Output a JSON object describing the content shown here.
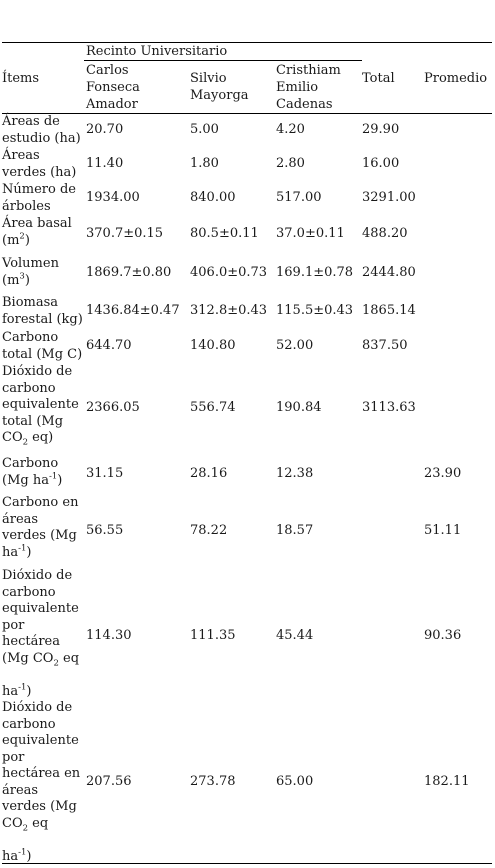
{
  "table": {
    "group_header": "Recinto Universitario",
    "col_items": "Ítems",
    "col_site1": "Carlos\nFonseca\nAmador",
    "col_site2": "Silvio\nMayorga",
    "col_site3": "Cristhiam\nEmilio\nCadenas",
    "col_total": "Total",
    "col_avg": "Promedio",
    "rows": [
      {
        "label": "Áreas de\nestudio (ha)",
        "c1": "20.70",
        "c2": "5.00",
        "c3": "4.20",
        "total": "29.90",
        "avg": ""
      },
      {
        "label": "Áreas\nverdes (ha)",
        "c1": "11.40",
        "c2": "1.80",
        "c3": "2.80",
        "total": "16.00",
        "avg": ""
      },
      {
        "label": "Número de\nárboles",
        "c1": "1934.00",
        "c2": "840.00",
        "c3": "517.00",
        "total": "3291.00",
        "avg": ""
      },
      {
        "label_a": "Área basal\n(m",
        "sup": "2",
        "label_b": ")",
        "c1": "370.7±0.15",
        "c2": "80.5±0.11",
        "c3": "37.0±0.11",
        "total": "488.20",
        "avg": ""
      },
      {
        "label_a": "Volumen\n(m",
        "sup": "3",
        "label_b": ")",
        "c1": "1869.7±0.80",
        "c2": "406.0±0.73",
        "c3": "169.1±0.78",
        "total": "2444.80",
        "avg": ""
      },
      {
        "label": "Biomasa\nforestal (kg)",
        "c1": "1436.84±0.47",
        "c2": "312.8±0.43",
        "c3": "115.5±0.43",
        "total": "1865.14",
        "avg": ""
      },
      {
        "label": "Carbono\ntotal (Mg C)",
        "c1": "644.70",
        "c2": "140.80",
        "c3": "52.00",
        "total": "837.50",
        "avg": ""
      },
      {
        "label_a": "Dióxido de\ncarbono\nequivalente\ntotal (Mg\nCO",
        "sub": "2",
        "label_b": " eq)",
        "c1": "2366.05",
        "c2": "556.74",
        "c3": "190.84",
        "total": "3113.63",
        "avg": ""
      },
      {
        "label_a": "Carbono\n(Mg ha",
        "sup": "-1",
        "label_b": ")",
        "c1": "31.15",
        "c2": "28.16",
        "c3": "12.38",
        "total": "",
        "avg": "23.90"
      },
      {
        "label_a": "Carbono en\náreas\nverdes (Mg\nha",
        "sup": "-1",
        "label_b": ")",
        "c1": "56.55",
        "c2": "78.22",
        "c3": "18.57",
        "total": "",
        "avg": "51.11"
      },
      {
        "label_a": "Dióxido de\ncarbono\nequivalente\npor\nhectárea\n(Mg CO",
        "sub": "2",
        "label_b": " eq\n\nha",
        "sup2": "-1",
        "label_c": ")",
        "c1": "114.30",
        "c2": "111.35",
        "c3": "45.44",
        "total": "",
        "avg": "90.36"
      },
      {
        "label_a": "Dióxido de\ncarbono\nequivalente\npor\nhectárea en\náreas\nverdes (Mg\nCO",
        "sub": "2",
        "label_b": " eq\n\nha",
        "sup2": "-1",
        "label_c": ")",
        "c1": "207.56",
        "c2": "273.78",
        "c3": "65.00",
        "total": "",
        "avg": "182.11"
      }
    ]
  }
}
